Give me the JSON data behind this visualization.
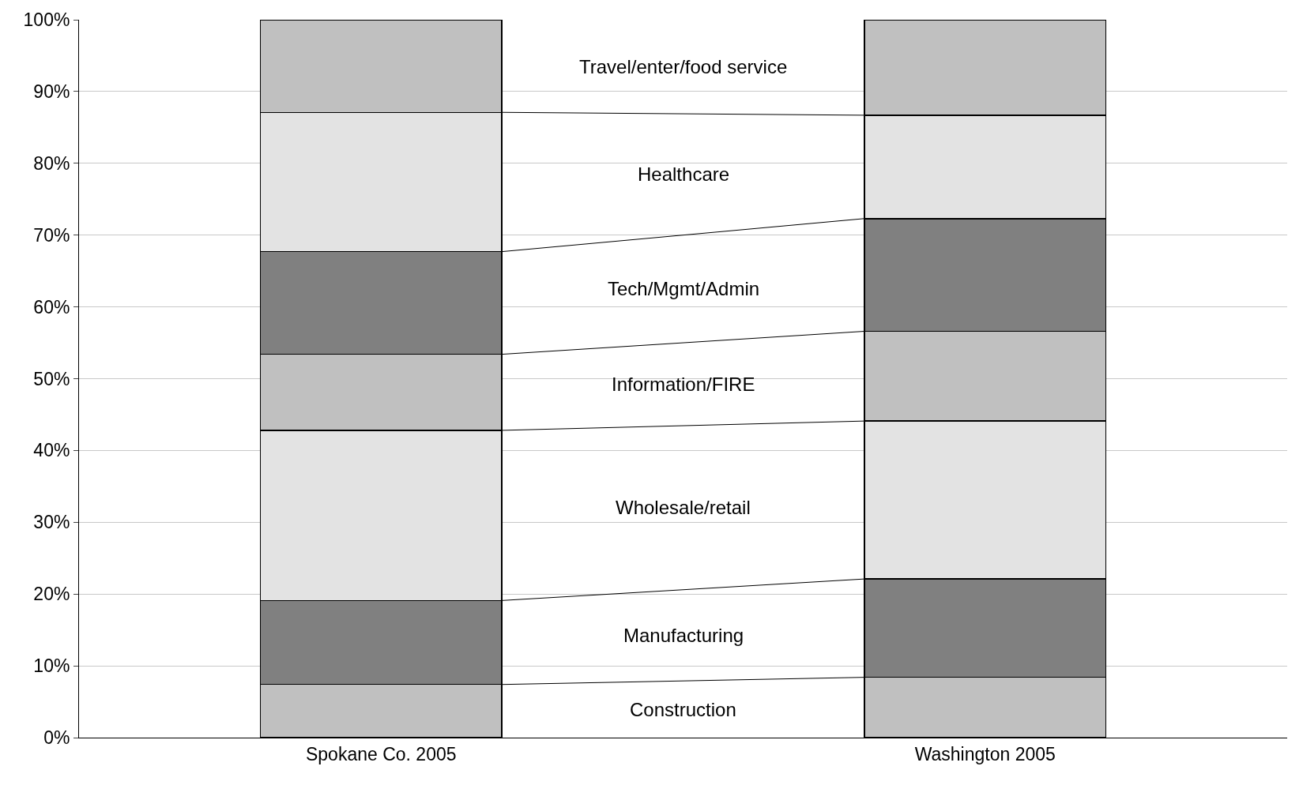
{
  "chart_data": {
    "type": "bar",
    "stacked": true,
    "categories": [
      "Spokane Co. 2005",
      "Washington 2005"
    ],
    "series": [
      {
        "color": "#c0c0c0",
        "values": [
          7.4,
          8.4
        ]
      },
      {
        "color": "#808080",
        "values": [
          11.7,
          13.7
        ]
      },
      {
        "color": "#e3e3e3",
        "values": [
          23.7,
          22.0
        ]
      },
      {
        "color": "#c0c0c0",
        "values": [
          10.6,
          12.5
        ]
      },
      {
        "color": "#808080",
        "values": [
          14.3,
          15.7
        ]
      },
      {
        "color": "#e3e3e3",
        "values": [
          19.4,
          14.4
        ]
      },
      {
        "color": "#c0c0c0",
        "values": [
          12.9,
          13.3
        ]
      }
    ],
    "annotations": [
      "Construction",
      "Manufacturing",
      "Wholesale/retail",
      "Information/FIRE",
      "Tech/Mgmt/Admin",
      "Healthcare",
      "Travel/enter/food service"
    ],
    "ylim": [
      0,
      100
    ],
    "yticks": [
      {
        "value": 0,
        "label": "0%"
      },
      {
        "value": 10,
        "label": "10%"
      },
      {
        "value": 20,
        "label": "20%"
      },
      {
        "value": 30,
        "label": "30%"
      },
      {
        "value": 40,
        "label": "40%"
      },
      {
        "value": 50,
        "label": "50%"
      },
      {
        "value": 60,
        "label": "60%"
      },
      {
        "value": 70,
        "label": "70%"
      },
      {
        "value": 80,
        "label": "80%"
      },
      {
        "value": 90,
        "label": "90%"
      },
      {
        "value": 100,
        "label": "100%"
      }
    ],
    "grid": "y",
    "legend": false
  }
}
